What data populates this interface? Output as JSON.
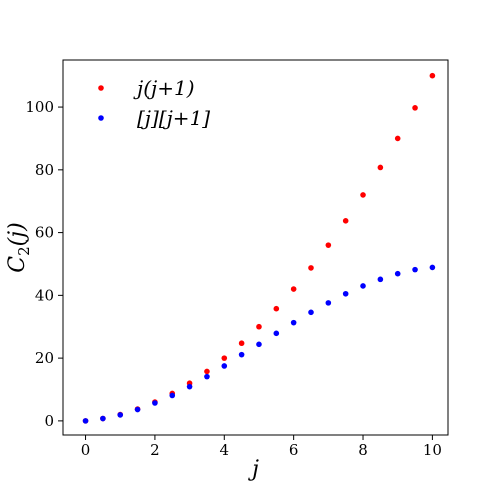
{
  "chart_data": {
    "type": "scatter",
    "xlabel": "j",
    "ylabel": "C_2(j)",
    "xlim": [
      -0.65,
      10.45
    ],
    "ylim": [
      -4.5,
      115
    ],
    "xticks": [
      0,
      2,
      4,
      6,
      8,
      10
    ],
    "yticks": [
      0,
      20,
      40,
      60,
      80,
      100
    ],
    "grid": false,
    "legend_position": "top-left",
    "x": [
      0,
      0.5,
      1,
      1.5,
      2,
      2.5,
      3,
      3.5,
      4,
      4.5,
      5,
      5.5,
      6,
      6.5,
      7,
      7.5,
      8,
      8.5,
      9,
      9.5,
      10
    ],
    "series": [
      {
        "name": "j(j+1)",
        "color": "#ff0000",
        "values": [
          0,
          0.75,
          2,
          3.75,
          6,
          8.75,
          12,
          15.75,
          20,
          24.75,
          30,
          35.75,
          42,
          48.75,
          56,
          63.75,
          72,
          80.75,
          90,
          99.75,
          110
        ]
      },
      {
        "name": "[j][j+1]",
        "color": "#0000ff",
        "values": [
          0,
          0.75,
          1.9,
          3.6,
          5.7,
          8.1,
          10.9,
          14.1,
          17.5,
          21.1,
          24.4,
          27.9,
          31.3,
          34.6,
          37.6,
          40.5,
          43.0,
          45.1,
          46.9,
          48.2,
          48.9
        ]
      }
    ]
  }
}
